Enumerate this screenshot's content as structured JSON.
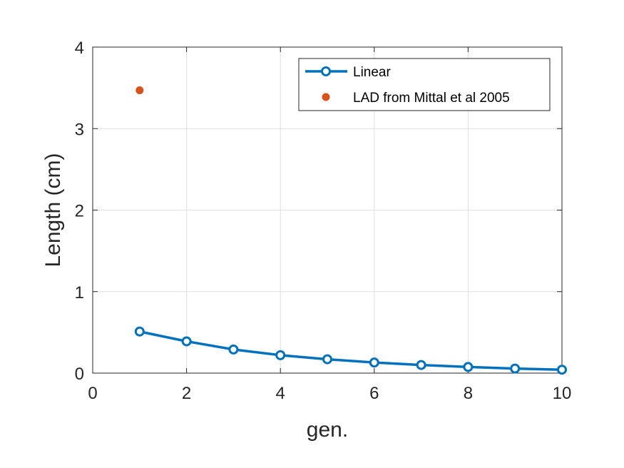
{
  "chart_data": {
    "type": "line",
    "xlabel": "gen.",
    "ylabel": "Length (cm)",
    "xlim": [
      0,
      10
    ],
    "ylim": [
      0,
      4
    ],
    "xticks": [
      0,
      2,
      4,
      6,
      8,
      10
    ],
    "yticks": [
      0,
      1,
      2,
      3,
      4
    ],
    "grid": true,
    "legend_position": "top-right",
    "series": [
      {
        "name": "Linear",
        "style": "line-with-circle-markers",
        "color": "#0072BD",
        "x": [
          1,
          2,
          3,
          4,
          5,
          6,
          7,
          8,
          9,
          10
        ],
        "y": [
          0.51,
          0.39,
          0.29,
          0.22,
          0.17,
          0.13,
          0.1,
          0.075,
          0.056,
          0.042
        ]
      },
      {
        "name": "LAD from Mittal et al 2005",
        "style": "filled-dot",
        "color": "#D95319",
        "x": [
          1
        ],
        "y": [
          3.47
        ]
      }
    ]
  }
}
